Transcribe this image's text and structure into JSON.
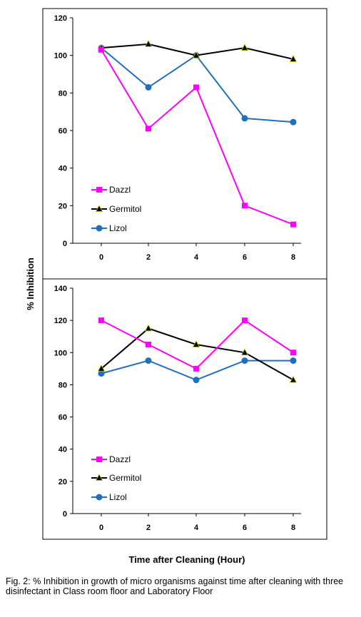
{
  "colors": {
    "Dazzl": "#ff00ff",
    "Germitol": "#000000",
    "Lizol": "#1f6fbf"
  },
  "chart_data": [
    {
      "type": "line",
      "x": [
        0,
        2,
        4,
        6,
        8
      ],
      "ylim": [
        0,
        120
      ],
      "yticks": [
        0,
        20,
        40,
        60,
        80,
        100,
        120
      ],
      "legend_position": "bottom-left",
      "series": [
        {
          "name": "Dazzl",
          "marker": "square",
          "values": [
            103,
            61,
            83,
            20,
            10
          ]
        },
        {
          "name": "Germitol",
          "marker": "triangle",
          "values": [
            104,
            106,
            100,
            104,
            98
          ]
        },
        {
          "name": "Lizol",
          "marker": "circle",
          "values": [
            104,
            83,
            100,
            66.5,
            64.5
          ]
        }
      ]
    },
    {
      "type": "line",
      "x": [
        0,
        2,
        4,
        6,
        8
      ],
      "ylim": [
        0,
        140
      ],
      "yticks": [
        0,
        20,
        40,
        60,
        80,
        100,
        120,
        140
      ],
      "legend_position": "bottom-left",
      "series": [
        {
          "name": "Dazzl",
          "marker": "square",
          "values": [
            120,
            105,
            90,
            120,
            100
          ]
        },
        {
          "name": "Germitol",
          "marker": "triangle",
          "values": [
            90,
            115,
            105,
            100,
            83
          ]
        },
        {
          "name": "Lizol",
          "marker": "circle",
          "values": [
            87,
            95,
            83,
            95,
            95
          ]
        }
      ]
    }
  ],
  "ylabel": "% Inhibition",
  "xlabel": "Time after Cleaning (Hour)",
  "caption": "Fig. 2: % Inhibition in growth of micro organisms against time after cleaning with three disinfectant in Class room floor and Laboratory Floor"
}
